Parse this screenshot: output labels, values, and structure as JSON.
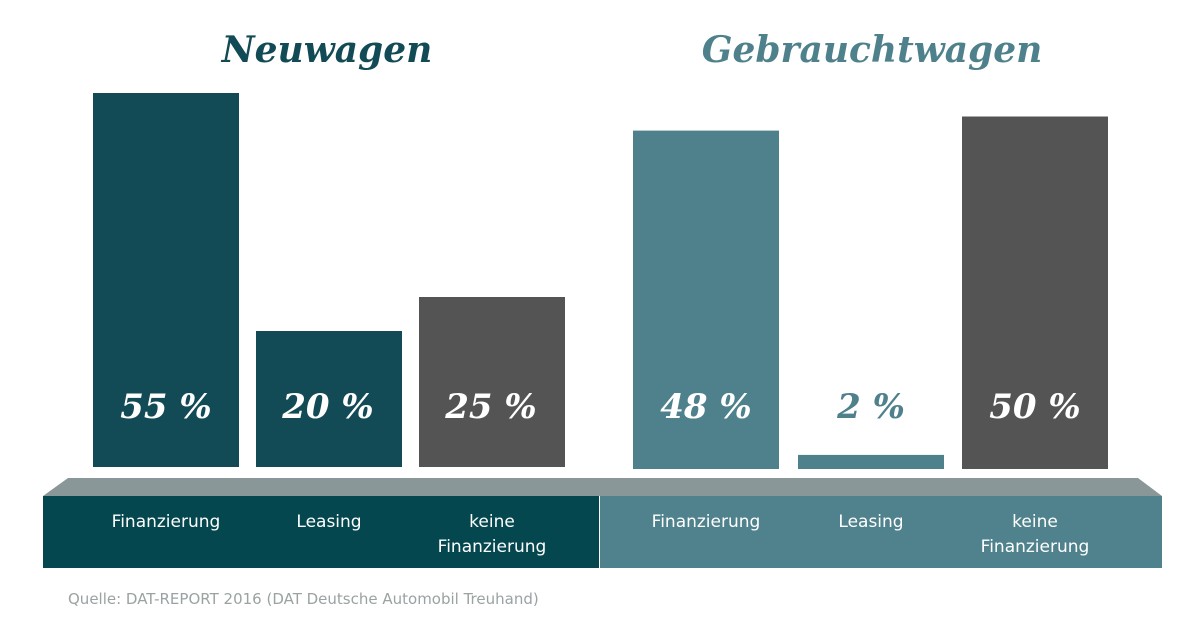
{
  "colors": {
    "new_dark": "#124b55",
    "used_teal": "#4e818b",
    "none_gray": "#545454",
    "platform_top": "#8a9799",
    "band_new": "#04474f",
    "band_used": "#4f828c",
    "source_text": "#9aa2a4"
  },
  "chart_data": [
    {
      "type": "bar",
      "title": "Neuwagen",
      "categories": [
        "Finanzierung",
        "Leasing",
        "keine Finanzierung"
      ],
      "category_lines": [
        [
          "Finanzierung"
        ],
        [
          "Leasing"
        ],
        [
          "keine",
          "Finanzierung"
        ]
      ],
      "values": [
        55,
        20,
        25
      ],
      "value_labels": [
        "55 %",
        "20 %",
        "25 %"
      ],
      "ylim": [
        0,
        100
      ],
      "xlabel": "",
      "ylabel": "",
      "grid": false
    },
    {
      "type": "bar",
      "title": "Gebrauchtwagen",
      "categories": [
        "Finanzierung",
        "Leasing",
        "keine Finanzierung"
      ],
      "category_lines": [
        [
          "Finanzierung"
        ],
        [
          "Leasing"
        ],
        [
          "keine",
          "Finanzierung"
        ]
      ],
      "values": [
        48,
        2,
        50
      ],
      "value_labels": [
        "48 %",
        "2 %",
        "50 %"
      ],
      "ylim": [
        0,
        100
      ],
      "xlabel": "",
      "ylabel": "",
      "grid": false
    }
  ],
  "source": "Quelle: DAT-REPORT 2016 (DAT Deutsche Automobil Treuhand)"
}
